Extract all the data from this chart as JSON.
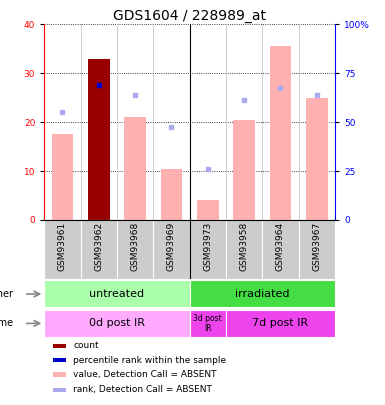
{
  "title": "GDS1604 / 228989_at",
  "samples": [
    "GSM93961",
    "GSM93962",
    "GSM93968",
    "GSM93969",
    "GSM93973",
    "GSM93958",
    "GSM93964",
    "GSM93967"
  ],
  "bar_values": [
    17.5,
    33.0,
    21.0,
    10.5,
    4.0,
    20.5,
    35.5,
    25.0
  ],
  "bar_colors": [
    "#ffb0b0",
    "#990000",
    "#ffb0b0",
    "#ffb0b0",
    "#ffb0b0",
    "#ffb0b0",
    "#ffb0b0",
    "#ffb0b0"
  ],
  "rank_dots": [
    22.0,
    27.5,
    25.5,
    19.0,
    10.5,
    24.5,
    27.0,
    25.5
  ],
  "rank_dot_colors": [
    "#aaaaee",
    "#0000cc",
    "#aaaaee",
    "#aaaaee",
    "#aaaaee",
    "#aaaaee",
    "#aaaaee",
    "#aaaaee"
  ],
  "ylim_left": [
    0,
    40
  ],
  "ylim_right": [
    0,
    100
  ],
  "yticks_left": [
    0,
    10,
    20,
    30,
    40
  ],
  "yticks_right": [
    0,
    25,
    50,
    75,
    100
  ],
  "ytick_labels_right": [
    "0",
    "25",
    "50",
    "75",
    "100%"
  ],
  "groups_other": [
    {
      "label": "untreated",
      "start": 0,
      "end": 4,
      "color": "#aaffaa"
    },
    {
      "label": "irradiated",
      "start": 4,
      "end": 8,
      "color": "#44dd44"
    }
  ],
  "groups_time": [
    {
      "label": "0d post IR",
      "start": 0,
      "end": 4,
      "color": "#ffaaff"
    },
    {
      "label": "3d post\nIR",
      "start": 4,
      "end": 5,
      "color": "#ee44ee"
    },
    {
      "label": "7d post IR",
      "start": 5,
      "end": 8,
      "color": "#ee44ee"
    }
  ],
  "legend_items": [
    {
      "color": "#990000",
      "label": "count"
    },
    {
      "color": "#0000cc",
      "label": "percentile rank within the sample"
    },
    {
      "color": "#ffb0b0",
      "label": "value, Detection Call = ABSENT"
    },
    {
      "color": "#aaaaee",
      "label": "rank, Detection Call = ABSENT"
    }
  ],
  "other_label": "other",
  "time_label": "time",
  "xtick_bg": "#cccccc",
  "title_fontsize": 10,
  "tick_fontsize": 6.5,
  "label_fontsize": 8,
  "legend_fontsize": 6.5
}
